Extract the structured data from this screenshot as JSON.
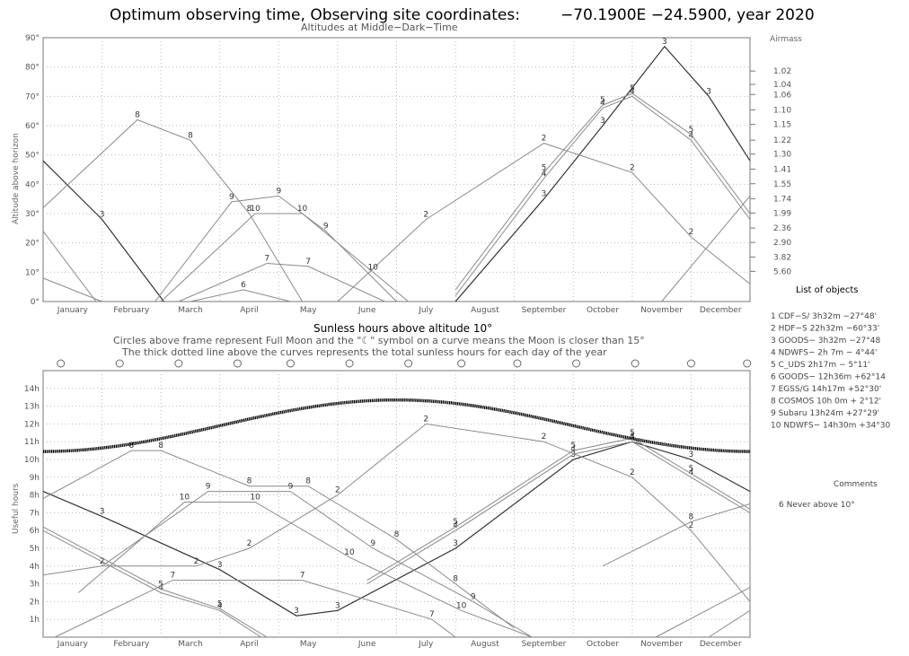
{
  "header": {
    "title_left": "Optimum observing time, Observing site coordinates:",
    "title_right": "−70.1900E  −24.5900, year 2020"
  },
  "top_panel": {
    "subtitle": "Altitudes at Middle−Dark−Time",
    "ylabel": "Altitude above horizon",
    "right_axis_title": "Airmass",
    "y_ticks": [
      "0°",
      "10°",
      "20°",
      "30°",
      "40°",
      "50°",
      "60°",
      "70°",
      "80°",
      "90°"
    ],
    "airmass_ticks": [
      "1.02",
      "1.04",
      "1.06",
      "1.10",
      "1.15",
      "1.22",
      "1.30",
      "1.41",
      "1.55",
      "1.74",
      "1.99",
      "2.36",
      "2.90",
      "3.82",
      "5.60"
    ]
  },
  "bottom_panel": {
    "title": "Sunless hours above altitude 10°",
    "note1": "Circles above frame represent Full Moon and the \"☾\" symbol on a curve means the Moon is closer than 15°",
    "note2": "The thick dotted line above the curves represents the total sunless hours for each day of the year",
    "ylabel": "Useful hours",
    "y_ticks": [
      "1h",
      "2h",
      "3h",
      "4h",
      "5h",
      "6h",
      "7h",
      "8h",
      "9h",
      "10h",
      "11h",
      "12h",
      "13h",
      "14h"
    ]
  },
  "months": [
    "January",
    "February",
    "March",
    "April",
    "May",
    "June",
    "July",
    "August",
    "September",
    "October",
    "November",
    "December"
  ],
  "objects_panel": {
    "title": "List of objects",
    "items": [
      "1 CDF−S/  3h32m −27°48'",
      "2 HDF−S  22h32m −60°33'",
      "3 GOODS−  3h32m −27°48",
      "4 NDWFS−  2h 7m −  4°44'",
      "5 C_UDS   2h17m −  5°11'",
      "6 GOODS− 12h36m +62°14",
      "7 EGSS/G 14h17m +52°30'",
      "8 COSMOS 10h 0m +  2°12'",
      "9 Subaru 13h24m +27°29'",
      "10 NDWFS− 14h30m +34°30"
    ]
  },
  "comments_panel": {
    "title": "Comments",
    "text": "6 Never above 10°"
  },
  "chart_data": [
    {
      "type": "line",
      "title": "Altitudes at Middle−Dark−Time",
      "xlabel": "",
      "ylabel": "Altitude above horizon",
      "y2label": "Airmass",
      "ylim": [
        0,
        90
      ],
      "x_unit": "month (0 = Jan 1, 12 = Dec 31)",
      "series": [
        {
          "name": "3",
          "points": [
            [
              0,
              48
            ],
            [
              1,
              28
            ],
            [
              2.05,
              0
            ]
          ]
        },
        {
          "name": "3",
          "points": [
            [
              7,
              0
            ],
            [
              8.5,
              35
            ],
            [
              9.5,
              60
            ],
            [
              10.55,
              87
            ],
            [
              11.3,
              70
            ],
            [
              12,
              48
            ]
          ]
        },
        {
          "name": "4",
          "points": [
            [
              7,
              2
            ],
            [
              8.5,
              42
            ],
            [
              9.5,
              66
            ],
            [
              10,
              70
            ],
            [
              11,
              55
            ],
            [
              12,
              28
            ]
          ]
        },
        {
          "name": "5",
          "points": [
            [
              0,
              24
            ],
            [
              0.9,
              0
            ]
          ]
        },
        {
          "name": "5",
          "points": [
            [
              7,
              4
            ],
            [
              8.5,
              44
            ],
            [
              9.5,
              67
            ],
            [
              10,
              71
            ],
            [
              11,
              57
            ],
            [
              12,
              30
            ]
          ]
        },
        {
          "name": "2",
          "points": [
            [
              0,
              8
            ],
            [
              1,
              0
            ]
          ]
        },
        {
          "name": "2",
          "points": [
            [
              5,
              0
            ],
            [
              6.5,
              28
            ],
            [
              8.5,
              54
            ],
            [
              10,
              44
            ],
            [
              11,
              22
            ],
            [
              12,
              6
            ]
          ]
        },
        {
          "name": "8",
          "points": [
            [
              0,
              32
            ],
            [
              1.6,
              62
            ],
            [
              2.5,
              55
            ],
            [
              3.5,
              30
            ],
            [
              4.4,
              0
            ]
          ]
        },
        {
          "name": "8",
          "points": [
            [
              10.5,
              0
            ],
            [
              12,
              36
            ]
          ]
        },
        {
          "name": "9",
          "points": [
            [
              1.9,
              0
            ],
            [
              3.2,
              34
            ],
            [
              4,
              36
            ],
            [
              4.8,
              24
            ],
            [
              6,
              0
            ]
          ]
        },
        {
          "name": "10",
          "points": [
            [
              2,
              0
            ],
            [
              3.6,
              30
            ],
            [
              4.4,
              30
            ],
            [
              5.6,
              10
            ],
            [
              6.2,
              0
            ]
          ]
        },
        {
          "name": "7",
          "points": [
            [
              2.3,
              0
            ],
            [
              3.8,
              13
            ],
            [
              4.5,
              12
            ],
            [
              5.8,
              0
            ]
          ]
        },
        {
          "name": "6",
          "points": [
            [
              2.5,
              0
            ],
            [
              3.4,
              4
            ],
            [
              4.2,
              0
            ]
          ]
        }
      ]
    },
    {
      "type": "line",
      "title": "Sunless hours above altitude 10°",
      "xlabel": "",
      "ylabel": "Useful hours",
      "ylim": [
        0,
        15
      ],
      "x_unit": "month (0 = Jan 1, 12 = Dec 31)",
      "sunless_hours": {
        "winter_max": 13.35,
        "summer_min": 10.45
      },
      "full_moons": [
        0.3,
        1.3,
        2.3,
        3.3,
        4.2,
        5.2,
        6.2,
        7.1,
        8.05,
        9.05,
        10.05,
        11.0,
        11.95
      ],
      "series": [
        {
          "name": "3",
          "points": [
            [
              0,
              8.2
            ],
            [
              1,
              6.8
            ],
            [
              3,
              3.8
            ],
            [
              4.3,
              1.2
            ],
            [
              5,
              1.5
            ],
            [
              7,
              5
            ],
            [
              9,
              10
            ],
            [
              10,
              11
            ],
            [
              11,
              10
            ],
            [
              12,
              8.2
            ]
          ]
        },
        {
          "name": "4",
          "points": [
            [
              0,
              6
            ],
            [
              2,
              2.5
            ],
            [
              3,
              1.5
            ],
            [
              3.7,
              0
            ]
          ]
        },
        {
          "name": "4",
          "points": [
            [
              5.5,
              3
            ],
            [
              7,
              6
            ],
            [
              9,
              10.3
            ],
            [
              10,
              11
            ],
            [
              11,
              9
            ],
            [
              12,
              7
            ]
          ]
        },
        {
          "name": "5",
          "points": [
            [
              0,
              6.2
            ],
            [
              2,
              2.7
            ],
            [
              3,
              1.6
            ],
            [
              3.8,
              0
            ]
          ]
        },
        {
          "name": "5",
          "points": [
            [
              5.5,
              3.2
            ],
            [
              7,
              6.2
            ],
            [
              9,
              10.5
            ],
            [
              10,
              11.2
            ],
            [
              11,
              9.2
            ],
            [
              12,
              7.2
            ]
          ]
        },
        {
          "name": "2",
          "points": [
            [
              0,
              3.5
            ],
            [
              1,
              4
            ],
            [
              2.6,
              4
            ],
            [
              3.5,
              5
            ],
            [
              5,
              8
            ],
            [
              6.5,
              12
            ],
            [
              8.5,
              11
            ],
            [
              10,
              9
            ],
            [
              11,
              6
            ],
            [
              12,
              2
            ]
          ]
        },
        {
          "name": "8",
          "points": [
            [
              0,
              7.8
            ],
            [
              1.5,
              10.5
            ],
            [
              2,
              10.5
            ],
            [
              3.5,
              8.5
            ],
            [
              4.5,
              8.5
            ],
            [
              6,
              5.5
            ],
            [
              7,
              3
            ],
            [
              8,
              0.5
            ]
          ]
        },
        {
          "name": "8",
          "points": [
            [
              9.5,
              4
            ],
            [
              11,
              6.5
            ],
            [
              12,
              7.5
            ]
          ]
        },
        {
          "name": "9",
          "points": [
            [
              1,
              4
            ],
            [
              2.8,
              8.2
            ],
            [
              4.2,
              8.2
            ],
            [
              5.6,
              5
            ],
            [
              7.3,
              2
            ],
            [
              8.3,
              0
            ]
          ]
        },
        {
          "name": "10",
          "points": [
            [
              0.6,
              2.5
            ],
            [
              2.4,
              7.6
            ],
            [
              3.6,
              7.6
            ],
            [
              5.2,
              4.5
            ],
            [
              7.1,
              1.5
            ],
            [
              8.3,
              0
            ]
          ]
        },
        {
          "name": "7",
          "points": [
            [
              0.2,
              0
            ],
            [
              2.2,
              3.2
            ],
            [
              4.4,
              3.2
            ],
            [
              6.6,
              1
            ],
            [
              7,
              0
            ]
          ]
        },
        {
          "name": "9",
          "points": [
            [
              10.4,
              0
            ],
            [
              12,
              2.8
            ]
          ]
        },
        {
          "name": "10",
          "points": [
            [
              11.3,
              0
            ],
            [
              12,
              1.5
            ]
          ]
        }
      ]
    }
  ]
}
